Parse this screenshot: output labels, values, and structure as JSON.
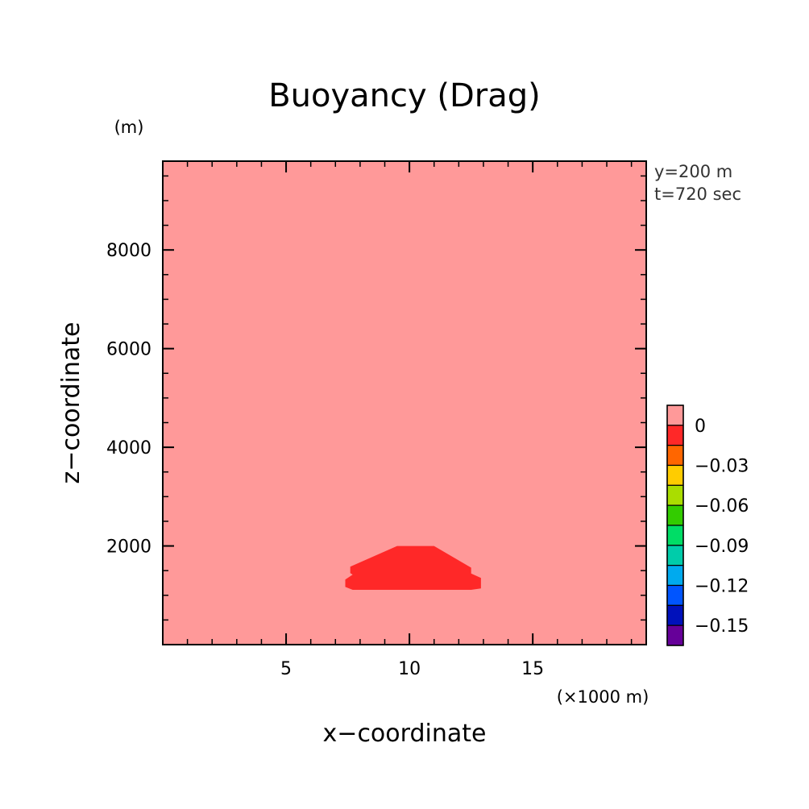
{
  "chart_data": {
    "type": "heatmap",
    "title": "Buoyancy (Drag)",
    "xlabel": "x−coordinate",
    "ylabel": "z−coordinate",
    "x_unit": "(×1000 m)",
    "y_unit": "(m)",
    "xlim": [
      0,
      19.6
    ],
    "ylim": [
      0,
      9800
    ],
    "x_ticks": [
      5,
      10,
      15
    ],
    "x_tick_labels": [
      "5",
      "10",
      "15"
    ],
    "y_ticks": [
      2000,
      4000,
      6000,
      8000
    ],
    "y_tick_labels": [
      "2000",
      "4000",
      "6000",
      "8000"
    ],
    "annotations": [
      "y=200 m",
      "t=720 sec"
    ],
    "background_value": 0,
    "background_color": "#ff9999",
    "region": {
      "value": -0.005,
      "color": "#ff2828",
      "polygon": [
        [
          9.5,
          2000
        ],
        [
          11.0,
          2000
        ],
        [
          12.5,
          1560
        ],
        [
          12.5,
          1440
        ],
        [
          12.9,
          1350
        ],
        [
          12.9,
          1140
        ],
        [
          12.5,
          1110
        ],
        [
          7.7,
          1110
        ],
        [
          7.4,
          1170
        ],
        [
          7.4,
          1320
        ],
        [
          7.7,
          1420
        ],
        [
          7.6,
          1450
        ],
        [
          7.6,
          1580
        ],
        [
          9.5,
          2000
        ]
      ]
    },
    "colorbar": {
      "levels": [
        0,
        -0.015,
        -0.03,
        -0.045,
        -0.06,
        -0.075,
        -0.09,
        -0.105,
        -0.12,
        -0.135,
        -0.15
      ],
      "colors": [
        "#ff9999",
        "#ff2828",
        "#ff6600",
        "#ffcc00",
        "#aadd00",
        "#33cc00",
        "#00dd66",
        "#00ccaa",
        "#00aaee",
        "#0055ff",
        "#0011bb",
        "#660099"
      ],
      "tick_values": [
        0,
        -0.03,
        -0.06,
        -0.09,
        -0.12,
        -0.15
      ],
      "tick_labels": [
        "0",
        "−0.03",
        "−0.06",
        "−0.09",
        "−0.12",
        "−0.15"
      ]
    }
  }
}
